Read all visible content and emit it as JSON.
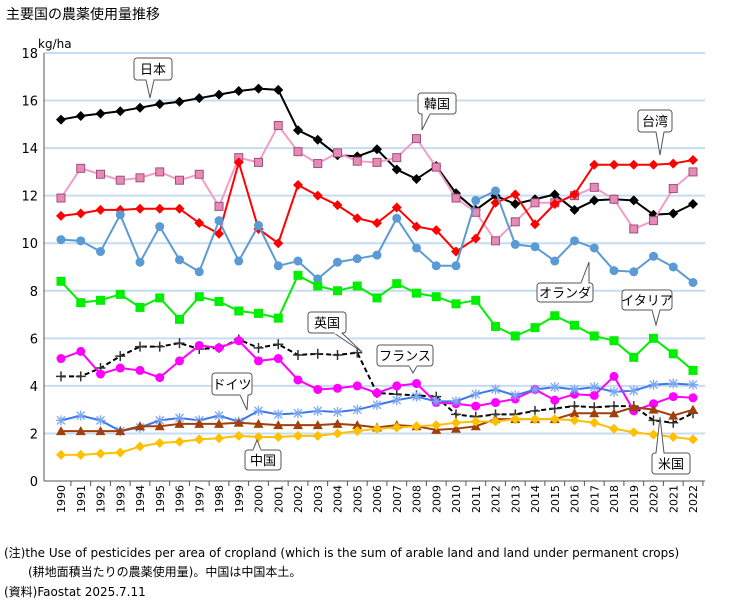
{
  "chart_data": {
    "type": "line",
    "title": "主要国の農薬使用量推移",
    "ylabel": "kg/ha",
    "xlabel": "",
    "ylim": [
      0,
      18
    ],
    "yticks": [
      0,
      2,
      4,
      6,
      8,
      10,
      12,
      14,
      16,
      18
    ],
    "grid": "horizontal",
    "x": [
      1990,
      1991,
      1992,
      1993,
      1994,
      1995,
      1996,
      1997,
      1998,
      1999,
      2000,
      2001,
      2002,
      2003,
      2004,
      2005,
      2006,
      2007,
      2008,
      2009,
      2010,
      2011,
      2012,
      2013,
      2014,
      2015,
      2016,
      2017,
      2018,
      2019,
      2020,
      2021,
      2022
    ],
    "series": [
      {
        "name": "日本",
        "color": "#000000",
        "marker": "diamond",
        "dash": false,
        "values": [
          15.2,
          15.35,
          15.45,
          15.55,
          15.7,
          15.85,
          15.95,
          16.1,
          16.25,
          16.4,
          16.5,
          16.45,
          14.75,
          14.35,
          13.7,
          13.65,
          13.95,
          13.1,
          12.7,
          13.25,
          12.1,
          11.4,
          12.0,
          11.65,
          11.85,
          12.05,
          11.4,
          11.8,
          11.85,
          11.8,
          11.2,
          11.25,
          11.65
        ]
      },
      {
        "name": "韓国",
        "color": "#f29ccb",
        "marker": "square-open",
        "dash": false,
        "values": [
          11.9,
          13.15,
          12.9,
          12.65,
          12.75,
          13.0,
          12.65,
          12.9,
          11.55,
          13.6,
          13.4,
          14.95,
          13.85,
          13.35,
          13.8,
          13.45,
          13.4,
          13.6,
          14.4,
          13.2,
          11.9,
          11.3,
          10.1,
          10.9,
          11.7,
          11.7,
          12.0,
          12.35,
          11.85,
          10.6,
          10.95,
          12.3,
          13.0
        ]
      },
      {
        "name": "台湾",
        "color": "#ff0000",
        "marker": "diamond",
        "dash": false,
        "values": [
          11.15,
          11.25,
          11.4,
          11.4,
          11.45,
          11.45,
          11.45,
          10.85,
          10.4,
          13.4,
          10.6,
          10.0,
          12.45,
          12.0,
          11.6,
          11.05,
          10.85,
          11.5,
          10.7,
          10.55,
          9.65,
          10.2,
          11.7,
          12.05,
          10.8,
          11.65,
          12.05,
          13.3,
          13.3,
          13.3,
          13.3,
          13.35,
          13.5
        ]
      },
      {
        "name": "オランダ",
        "color": "#5b9bd5",
        "marker": "circle",
        "dash": false,
        "values": [
          10.15,
          10.1,
          9.65,
          11.2,
          9.2,
          10.7,
          9.3,
          8.8,
          10.95,
          9.25,
          10.75,
          9.05,
          9.25,
          8.5,
          9.2,
          9.35,
          9.5,
          11.05,
          9.8,
          9.05,
          9.05,
          11.8,
          12.2,
          9.95,
          9.85,
          9.25,
          10.1,
          9.8,
          8.85,
          8.8,
          9.45,
          9.0,
          8.35
        ]
      },
      {
        "name": "イタリア",
        "color": "#00ee00",
        "marker": "square",
        "dash": false,
        "values": [
          8.4,
          7.5,
          7.6,
          7.85,
          7.3,
          7.7,
          6.8,
          7.75,
          7.55,
          7.15,
          7.05,
          6.85,
          8.65,
          8.2,
          8.0,
          8.2,
          7.7,
          8.3,
          7.9,
          7.75,
          7.45,
          7.6,
          6.5,
          6.1,
          6.45,
          6.95,
          6.55,
          6.1,
          5.9,
          5.2,
          6.0,
          5.35,
          4.65
        ]
      },
      {
        "name": "英国",
        "color": "#000000",
        "marker": "plus",
        "dash": true,
        "values": [
          4.4,
          4.4,
          4.75,
          5.25,
          5.65,
          5.65,
          5.8,
          5.55,
          5.6,
          5.95,
          5.6,
          5.75,
          5.3,
          5.35,
          5.3,
          5.4,
          3.7,
          3.65,
          3.6,
          3.55,
          2.8,
          2.7,
          2.8,
          2.8,
          2.95,
          3.05,
          3.15,
          3.1,
          3.15,
          3.15,
          2.55,
          2.45,
          2.85
        ]
      },
      {
        "name": "フランス",
        "color": "#ff00ff",
        "marker": "circle",
        "dash": false,
        "values": [
          5.15,
          5.45,
          4.5,
          4.75,
          4.65,
          4.35,
          5.05,
          5.7,
          5.6,
          5.9,
          5.05,
          5.15,
          4.25,
          3.85,
          3.9,
          4.0,
          3.7,
          4.0,
          4.1,
          3.3,
          3.25,
          3.15,
          3.3,
          3.45,
          3.85,
          3.4,
          3.65,
          3.6,
          4.4,
          2.95,
          3.25,
          3.55,
          3.5
        ]
      },
      {
        "name": "ドイツ",
        "color": "#3c78e8",
        "marker": "asterisk",
        "dash": false,
        "values": [
          2.55,
          2.75,
          2.55,
          2.1,
          2.25,
          2.55,
          2.65,
          2.55,
          2.75,
          2.5,
          2.95,
          2.8,
          2.85,
          2.95,
          2.9,
          3.0,
          3.2,
          3.4,
          3.55,
          3.35,
          3.35,
          3.65,
          3.85,
          3.6,
          3.85,
          3.95,
          3.85,
          3.95,
          3.75,
          3.8,
          4.05,
          4.1,
          4.05
        ]
      },
      {
        "name": "米国",
        "color": "#a0410d",
        "marker": "triangle",
        "dash": false,
        "values": [
          2.1,
          2.1,
          2.1,
          2.1,
          2.3,
          2.3,
          2.4,
          2.4,
          2.4,
          2.45,
          2.4,
          2.35,
          2.35,
          2.35,
          2.4,
          2.35,
          2.25,
          2.35,
          2.3,
          2.15,
          2.2,
          2.3,
          2.6,
          2.6,
          2.6,
          2.6,
          2.85,
          2.85,
          2.85,
          3.1,
          3.0,
          2.75,
          3.0
        ]
      },
      {
        "name": "中国",
        "color": "#ffc000",
        "marker": "diamond",
        "dash": false,
        "values": [
          1.1,
          1.1,
          1.15,
          1.2,
          1.45,
          1.6,
          1.65,
          1.75,
          1.8,
          1.9,
          1.85,
          1.85,
          1.9,
          1.9,
          2.0,
          2.1,
          2.2,
          2.25,
          2.3,
          2.35,
          2.45,
          2.5,
          2.5,
          2.6,
          2.6,
          2.6,
          2.55,
          2.45,
          2.2,
          2.05,
          1.95,
          1.85,
          1.75
        ]
      }
    ]
  },
  "notes": {
    "line1": "(注)the Use of pesticides per area of cropland (which is the sum of arable land and land under permanent crops)",
    "line2": "　　(耕地面積当たりの農薬使用量)。中国は中国本土。",
    "line3": "(資料)Faostat 2025.7.11"
  }
}
